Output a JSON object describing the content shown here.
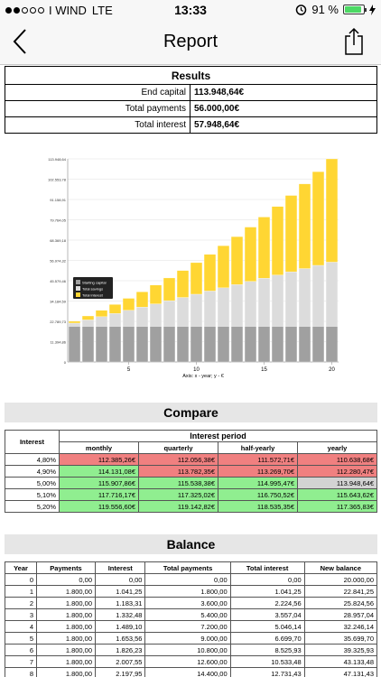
{
  "status": {
    "carrier": "I WIND",
    "network": "LTE",
    "time": "13:33",
    "battery": "91 %",
    "battery_level": 0.91
  },
  "nav": {
    "title": "Report",
    "back_icon": "chevron-left-icon",
    "share_icon": "share-icon"
  },
  "results": {
    "header": "Results",
    "rows": [
      {
        "label": "End capital",
        "value": "113.948,64€"
      },
      {
        "label": "Total payments",
        "value": "56.000,00€"
      },
      {
        "label": "Total interest",
        "value": "57.948,64€"
      }
    ]
  },
  "chart_data": {
    "type": "bar",
    "stacked": true,
    "xlabel": "Axis: x - year; y - €",
    "x": [
      1,
      2,
      3,
      4,
      5,
      6,
      7,
      8,
      9,
      10,
      11,
      12,
      13,
      14,
      15,
      16,
      17,
      18,
      19,
      20
    ],
    "x_ticks": [
      "5",
      "10",
      "15",
      "20"
    ],
    "y_ticks": [
      "0",
      "11.394,86",
      "22.789,73",
      "34.184,59",
      "45.579,46",
      "56.974,32",
      "68.369,18",
      "79.764,05",
      "91.158,91",
      "102.553,78",
      "113.948,64"
    ],
    "ylim": [
      0,
      113948.64
    ],
    "legend": [
      "Starting capital",
      "Total savings",
      "Total interest"
    ],
    "legend_position": "left-middle",
    "colors": [
      "#a0a0a0",
      "#dcdcdc",
      "#ffd633"
    ],
    "series": [
      {
        "name": "Starting capital",
        "values": [
          20000,
          20000,
          20000,
          20000,
          20000,
          20000,
          20000,
          20000,
          20000,
          20000,
          20000,
          20000,
          20000,
          20000,
          20000,
          20000,
          20000,
          20000,
          20000,
          20000
        ]
      },
      {
        "name": "Total savings",
        "values": [
          1800,
          3600,
          5400,
          7200,
          9000,
          10800,
          12600,
          14400,
          16200,
          18000,
          19800,
          21600,
          23400,
          25200,
          27000,
          28800,
          30600,
          32400,
          34200,
          36000
        ]
      },
      {
        "name": "Total interest",
        "values": [
          1041.25,
          2224.56,
          3557.04,
          5046.14,
          6699.7,
          8525.93,
          10533.48,
          12731.43,
          15129.31,
          17737.14,
          20565.41,
          23625.17,
          26927.99,
          30486.02,
          34311.98,
          38419.24,
          42821.82,
          47534.45,
          52572.59,
          57948.64
        ]
      }
    ],
    "grid": true
  },
  "compare": {
    "title": "Compare",
    "interest_header": "Interest",
    "period_header": "Interest period",
    "periods": [
      "monthly",
      "quarterly",
      "half-yearly",
      "yearly"
    ],
    "rows": [
      {
        "rate": "4,80%",
        "values": [
          "112.385,26€",
          "112.056,38€",
          "111.572,71€",
          "110.638,68€"
        ],
        "colors": [
          "red",
          "red",
          "red",
          "red"
        ]
      },
      {
        "rate": "4,90%",
        "values": [
          "114.131,08€",
          "113.782,35€",
          "113.269,70€",
          "112.280,47€"
        ],
        "colors": [
          "green",
          "red",
          "red",
          "red"
        ]
      },
      {
        "rate": "5,00%",
        "values": [
          "115.907,86€",
          "115.538,38€",
          "114.995,47€",
          "113.948,64€"
        ],
        "colors": [
          "green",
          "green",
          "green",
          "gray"
        ]
      },
      {
        "rate": "5,10%",
        "values": [
          "117.716,17€",
          "117.325,02€",
          "116.750,52€",
          "115.643,62€"
        ],
        "colors": [
          "green",
          "green",
          "green",
          "green"
        ]
      },
      {
        "rate": "5,20%",
        "values": [
          "119.556,60€",
          "119.142,82€",
          "118.535,35€",
          "117.365,83€"
        ],
        "colors": [
          "green",
          "green",
          "green",
          "green"
        ]
      }
    ]
  },
  "balance": {
    "title": "Balance",
    "headers": [
      "Year",
      "Payments",
      "Interest",
      "Total payments",
      "Total interest",
      "New balance"
    ],
    "rows": [
      [
        "0",
        "0,00",
        "0,00",
        "0,00",
        "0,00",
        "20.000,00"
      ],
      [
        "1",
        "1.800,00",
        "1.041,25",
        "1.800,00",
        "1.041,25",
        "22.841,25"
      ],
      [
        "2",
        "1.800,00",
        "1.183,31",
        "3.600,00",
        "2.224,56",
        "25.824,56"
      ],
      [
        "3",
        "1.800,00",
        "1.332,48",
        "5.400,00",
        "3.557,04",
        "28.957,04"
      ],
      [
        "4",
        "1.800,00",
        "1.489,10",
        "7.200,00",
        "5.046,14",
        "32.246,14"
      ],
      [
        "5",
        "1.800,00",
        "1.653,56",
        "9.000,00",
        "6.699,70",
        "35.699,70"
      ],
      [
        "6",
        "1.800,00",
        "1.826,23",
        "10.800,00",
        "8.525,93",
        "39.325,93"
      ],
      [
        "7",
        "1.800,00",
        "2.007,55",
        "12.600,00",
        "10.533,48",
        "43.133,48"
      ],
      [
        "8",
        "1.800,00",
        "2.197,95",
        "14.400,00",
        "12.731,43",
        "47.131,43"
      ]
    ]
  }
}
